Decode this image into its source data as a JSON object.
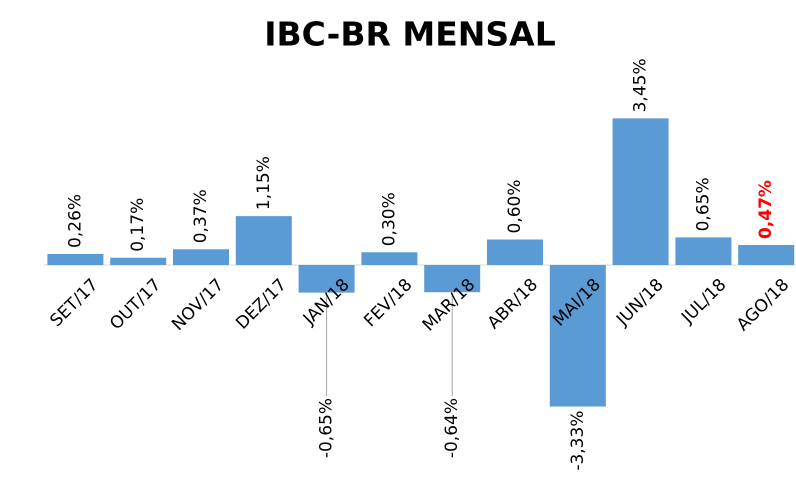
{
  "chart_data": {
    "type": "bar",
    "title": "IBC-BR MENSAL",
    "categories": [
      "SET/17",
      "OUT/17",
      "NOV/17",
      "DEZ/17",
      "JAN/18",
      "FEV/18",
      "MAR/18",
      "ABR/18",
      "MAI/18",
      "JUN/18",
      "JUL/18",
      "AGO/18"
    ],
    "values": [
      0.26,
      0.17,
      0.37,
      1.15,
      -0.65,
      0.3,
      -0.64,
      0.6,
      -3.33,
      3.45,
      0.65,
      0.47
    ],
    "value_labels": [
      "0,26%",
      "0,17%",
      "0,37%",
      "1,15%",
      "-0,65%",
      "0,30%",
      "-0,64%",
      "0,60%",
      "-3,33%",
      "3,45%",
      "0,65%",
      "0,47%"
    ],
    "value_label_colors": [
      "#000000",
      "#000000",
      "#000000",
      "#000000",
      "#000000",
      "#000000",
      "#000000",
      "#000000",
      "#000000",
      "#000000",
      "#000000",
      "#ff0000"
    ],
    "color": "#5b9bd5"
  }
}
